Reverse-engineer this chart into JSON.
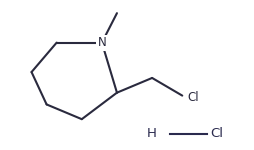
{
  "background_color": "#ffffff",
  "line_color": "#2a2a3e",
  "hcl_line_color": "#2a2a4e",
  "N_label": "N",
  "Cl_label": "Cl",
  "HCl_H": "H",
  "HCl_Cl": "Cl",
  "line_width": 1.5,
  "font_size": 8.5,
  "hcl_font_size": 9.5,
  "xlim": [
    0.0,
    1.0
  ],
  "ylim": [
    0.0,
    1.0
  ]
}
